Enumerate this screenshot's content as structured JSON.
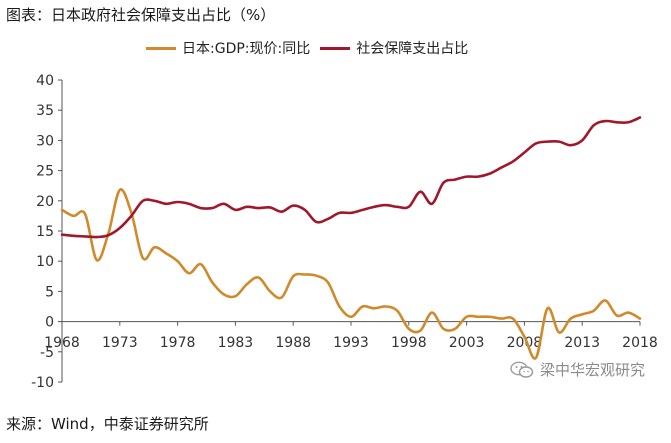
{
  "figure": {
    "title": "图表：日本政府社会保障支出占比（%）",
    "source": "来源：Wind，中泰证券研究所",
    "watermark": "梁中华宏观研究"
  },
  "chart_data": {
    "type": "line",
    "title": "",
    "xlabel": "",
    "ylabel": "",
    "ylim": [
      -10,
      40
    ],
    "yticks": [
      -10,
      -5,
      0,
      5,
      10,
      15,
      20,
      25,
      30,
      35,
      40
    ],
    "xlim": [
      1968,
      2018
    ],
    "xticks": [
      "1968",
      "1973",
      "1978",
      "1983",
      "1988",
      "1993",
      "1998",
      "2003",
      "2008",
      "2013",
      "2018"
    ],
    "grid": false,
    "legend_position": "top",
    "x": [
      1968,
      1969,
      1970,
      1971,
      1972,
      1973,
      1974,
      1975,
      1976,
      1977,
      1978,
      1979,
      1980,
      1981,
      1982,
      1983,
      1984,
      1985,
      1986,
      1987,
      1988,
      1989,
      1990,
      1991,
      1992,
      1993,
      1994,
      1995,
      1996,
      1997,
      1998,
      1999,
      2000,
      2001,
      2002,
      2003,
      2004,
      2005,
      2006,
      2007,
      2008,
      2009,
      2010,
      2011,
      2012,
      2013,
      2014,
      2015,
      2016,
      2017,
      2018
    ],
    "series": [
      {
        "name": "日本:GDP:现价:同比",
        "color": "#d08a2c",
        "values": [
          18.5,
          17.5,
          17.8,
          10.2,
          14.5,
          21.8,
          18.0,
          10.5,
          12.3,
          11.3,
          10.0,
          8.0,
          9.5,
          6.5,
          4.5,
          4.2,
          6.2,
          7.3,
          5.0,
          4.0,
          7.5,
          7.8,
          7.6,
          6.5,
          2.5,
          0.8,
          2.5,
          2.2,
          2.5,
          1.8,
          -1.2,
          -1.5,
          1.5,
          -1.2,
          -1.2,
          0.8,
          0.8,
          0.8,
          0.5,
          0.5,
          -2.5,
          -6.0,
          2.2,
          -1.8,
          0.5,
          1.2,
          1.8,
          3.5,
          1.0,
          1.5,
          0.5
        ]
      },
      {
        "name": "社会保障支出占比",
        "color": "#a0182b",
        "values": [
          14.4,
          14.2,
          14.1,
          14.0,
          14.3,
          15.5,
          17.5,
          20.0,
          20.0,
          19.5,
          19.8,
          19.5,
          18.8,
          18.8,
          19.5,
          18.5,
          19.0,
          18.8,
          18.9,
          18.2,
          19.2,
          18.5,
          16.5,
          17.0,
          18.0,
          18.0,
          18.5,
          19.0,
          19.3,
          19.0,
          19.0,
          21.5,
          19.5,
          23.0,
          23.5,
          24.0,
          24.0,
          24.5,
          25.5,
          26.5,
          28.0,
          29.5,
          29.8,
          29.8,
          29.2,
          30.0,
          32.5,
          33.2,
          33.0,
          33.0,
          33.8
        ]
      }
    ]
  }
}
